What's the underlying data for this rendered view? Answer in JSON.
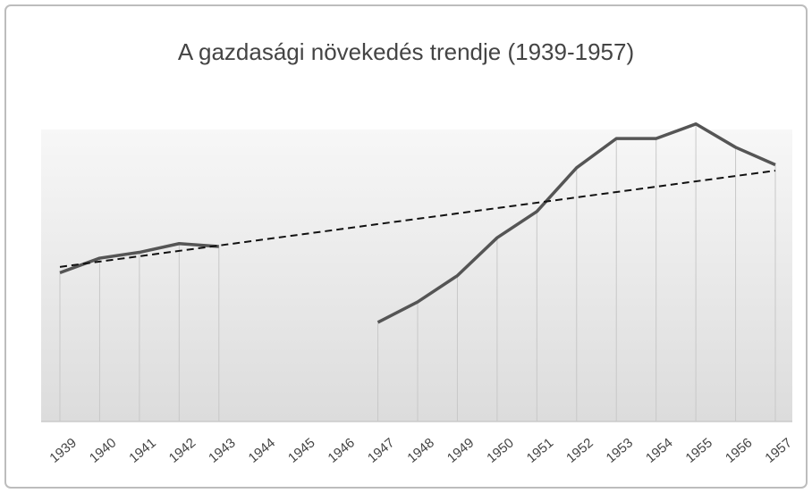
{
  "chart_data": {
    "type": "line",
    "title": "A gazdasági  növekedés  trendje  (1939-1957)",
    "categories": [
      "1939",
      "1940",
      "1941",
      "1942",
      "1943",
      "1944",
      "1945",
      "1946",
      "1947",
      "1948",
      "1949",
      "1950",
      "1951",
      "1952",
      "1953",
      "1954",
      "1955",
      "1956",
      "1957"
    ],
    "series": [
      {
        "color": "#555555",
        "values": [
          51,
          56,
          58,
          61,
          60,
          null,
          null,
          null,
          34,
          41,
          50,
          63,
          72,
          87,
          97,
          97,
          102,
          94,
          88
        ]
      }
    ],
    "trend_values": [
      53,
      86
    ],
    "trend_color": "#111111",
    "ylim": [
      0,
      120
    ],
    "drop_lines": true
  }
}
